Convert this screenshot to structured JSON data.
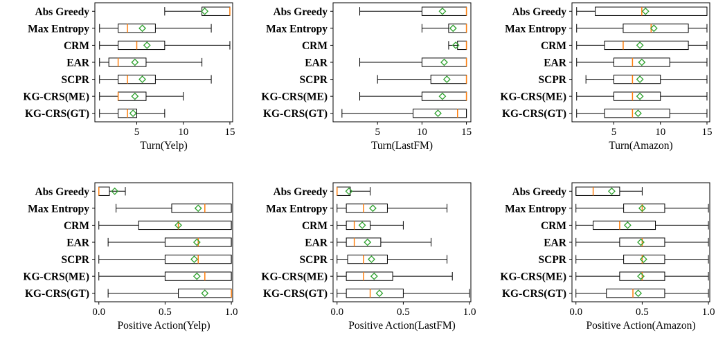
{
  "chart_data": [
    {
      "type": "boxplot",
      "xlabel": "Turn(Yelp)",
      "xlim": [
        0.5,
        15.3
      ],
      "ticks": [
        5,
        10,
        15
      ],
      "tick_labels": [
        "5",
        "10",
        "15"
      ],
      "methods": [
        {
          "name": "Abs Greedy",
          "min": 8,
          "q1": 12,
          "median": 15,
          "q3": 15,
          "max": 15,
          "mean": 12.3
        },
        {
          "name": "Max Entropy",
          "min": 1,
          "q1": 3,
          "median": 4,
          "q3": 7,
          "max": 13,
          "mean": 5.6
        },
        {
          "name": "CRM",
          "min": 1,
          "q1": 3,
          "median": 5,
          "q3": 8,
          "max": 15,
          "mean": 6.1
        },
        {
          "name": "EAR",
          "min": 1,
          "q1": 2,
          "median": 3,
          "q3": 6,
          "max": 12,
          "mean": 4.8
        },
        {
          "name": "SCPR",
          "min": 1,
          "q1": 3,
          "median": 4,
          "q3": 7,
          "max": 13,
          "mean": 5.6
        },
        {
          "name": "KG-CRS(ME)",
          "min": 1,
          "q1": 3,
          "median": 3,
          "q3": 6,
          "max": 10,
          "mean": 4.8
        },
        {
          "name": "KG-CRS(GT)",
          "min": 1,
          "q1": 3,
          "median": 4,
          "q3": 5,
          "max": 8,
          "mean": 4.6
        }
      ]
    },
    {
      "type": "boxplot",
      "xlabel": "Turn(LastFM)",
      "xlim": [
        0,
        15.5
      ],
      "ticks": [
        5,
        10,
        15
      ],
      "tick_labels": [
        "5",
        "10",
        "15"
      ],
      "methods": [
        {
          "name": "Abs Greedy",
          "min": 3,
          "q1": 10,
          "median": 15,
          "q3": 15,
          "max": 15,
          "mean": 12.3
        },
        {
          "name": "Max Entropy",
          "min": 10,
          "q1": 13,
          "median": 15,
          "q3": 15,
          "max": 15,
          "mean": 13.5
        },
        {
          "name": "CRM",
          "min": 13,
          "q1": 14,
          "median": 15,
          "q3": 15,
          "max": 15,
          "mean": 13.8
        },
        {
          "name": "EAR",
          "min": 3,
          "q1": 10,
          "median": 15,
          "q3": 15,
          "max": 15,
          "mean": 12.5
        },
        {
          "name": "SCPR",
          "min": 5,
          "q1": 11,
          "median": 15,
          "q3": 15,
          "max": 15,
          "mean": 12.8
        },
        {
          "name": "KG-CRS(ME)",
          "min": 3,
          "q1": 10,
          "median": 15,
          "q3": 15,
          "max": 15,
          "mean": 12.3
        },
        {
          "name": "KG-CRS(GT)",
          "min": 1,
          "q1": 9,
          "median": 14,
          "q3": 15,
          "max": 15,
          "mean": 11.8
        }
      ]
    },
    {
      "type": "boxplot",
      "xlabel": "Turn(Amazon)",
      "xlim": [
        0.5,
        15.3
      ],
      "ticks": [
        5,
        10,
        15
      ],
      "tick_labels": [
        "5",
        "10",
        "15"
      ],
      "methods": [
        {
          "name": "Abs Greedy",
          "min": 1,
          "q1": 3,
          "median": 8,
          "q3": 15,
          "max": 15,
          "mean": 8.4
        },
        {
          "name": "Max Entropy",
          "min": 1,
          "q1": 6,
          "median": 9,
          "q3": 13,
          "max": 15,
          "mean": 9.3
        },
        {
          "name": "CRM",
          "min": 1,
          "q1": 4,
          "median": 6,
          "q3": 13,
          "max": 15,
          "mean": 7.8
        },
        {
          "name": "EAR",
          "min": 1,
          "q1": 5,
          "median": 7,
          "q3": 11,
          "max": 15,
          "mean": 8.0
        },
        {
          "name": "SCPR",
          "min": 2,
          "q1": 5,
          "median": 7,
          "q3": 10,
          "max": 15,
          "mean": 7.8
        },
        {
          "name": "KG-CRS(ME)",
          "min": 1,
          "q1": 5,
          "median": 7,
          "q3": 10,
          "max": 15,
          "mean": 7.8
        },
        {
          "name": "KG-CRS(GT)",
          "min": 1,
          "q1": 4,
          "median": 7,
          "q3": 11,
          "max": 15,
          "mean": 7.6
        }
      ]
    },
    {
      "type": "boxplot",
      "xlabel": "Positive Action(Yelp)",
      "xlim": [
        -0.03,
        1.01
      ],
      "ticks": [
        0,
        0.5,
        1
      ],
      "tick_labels": [
        "0.0",
        "0.5",
        "1.0"
      ],
      "methods": [
        {
          "name": "Abs Greedy",
          "min": 0,
          "q1": 0,
          "median": 0,
          "q3": 0.08,
          "max": 0.2,
          "mean": 0.12
        },
        {
          "name": "Max Entropy",
          "min": 0.13,
          "q1": 0.55,
          "median": 0.8,
          "q3": 1.0,
          "max": 1.0,
          "mean": 0.75
        },
        {
          "name": "CRM",
          "min": 0,
          "q1": 0.3,
          "median": 0.6,
          "q3": 1.0,
          "max": 1.0,
          "mean": 0.6
        },
        {
          "name": "EAR",
          "min": 0.07,
          "q1": 0.5,
          "median": 0.75,
          "q3": 1.0,
          "max": 1.0,
          "mean": 0.74
        },
        {
          "name": "SCPR",
          "min": 0,
          "q1": 0.5,
          "median": 0.75,
          "q3": 1.0,
          "max": 1.0,
          "mean": 0.72
        },
        {
          "name": "KG-CRS(ME)",
          "min": 0,
          "q1": 0.5,
          "median": 0.8,
          "q3": 1.0,
          "max": 1.0,
          "mean": 0.74
        },
        {
          "name": "KG-CRS(GT)",
          "min": 0.07,
          "q1": 0.6,
          "median": 1.0,
          "q3": 1.0,
          "max": 1.0,
          "mean": 0.8
        }
      ]
    },
    {
      "type": "boxplot",
      "xlabel": "Positive Action(LastFM)",
      "xlim": [
        -0.03,
        1.01
      ],
      "ticks": [
        0,
        0.5,
        1
      ],
      "tick_labels": [
        "0.0",
        "0.5",
        "1.0"
      ],
      "methods": [
        {
          "name": "Abs Greedy",
          "min": 0,
          "q1": 0,
          "median": 0,
          "q3": 0.1,
          "max": 0.25,
          "mean": 0.09
        },
        {
          "name": "Max Entropy",
          "min": 0,
          "q1": 0.07,
          "median": 0.2,
          "q3": 0.38,
          "max": 0.83,
          "mean": 0.27
        },
        {
          "name": "CRM",
          "min": 0,
          "q1": 0.07,
          "median": 0.13,
          "q3": 0.25,
          "max": 0.5,
          "mean": 0.19
        },
        {
          "name": "EAR",
          "min": 0,
          "q1": 0.07,
          "median": 0.13,
          "q3": 0.33,
          "max": 0.71,
          "mean": 0.23
        },
        {
          "name": "SCPR",
          "min": 0,
          "q1": 0.08,
          "median": 0.2,
          "q3": 0.38,
          "max": 0.83,
          "mean": 0.26
        },
        {
          "name": "KG-CRS(ME)",
          "min": 0,
          "q1": 0.07,
          "median": 0.2,
          "q3": 0.42,
          "max": 0.87,
          "mean": 0.28
        },
        {
          "name": "KG-CRS(GT)",
          "min": 0,
          "q1": 0.07,
          "median": 0.25,
          "q3": 0.5,
          "max": 1.0,
          "mean": 0.32
        }
      ]
    },
    {
      "type": "boxplot",
      "xlabel": "Positive Action(Amazon)",
      "xlim": [
        -0.03,
        1.01
      ],
      "ticks": [
        0,
        0.5,
        1
      ],
      "tick_labels": [
        "0.0",
        "0.5",
        "1.0"
      ],
      "methods": [
        {
          "name": "Abs Greedy",
          "min": 0,
          "q1": 0,
          "median": 0.13,
          "q3": 0.33,
          "max": 0.5,
          "mean": 0.27
        },
        {
          "name": "Max Entropy",
          "min": 0,
          "q1": 0.36,
          "median": 0.5,
          "q3": 0.67,
          "max": 1.0,
          "mean": 0.5
        },
        {
          "name": "CRM",
          "min": 0,
          "q1": 0.13,
          "median": 0.33,
          "q3": 0.6,
          "max": 1.0,
          "mean": 0.39
        },
        {
          "name": "EAR",
          "min": 0,
          "q1": 0.33,
          "median": 0.5,
          "q3": 0.67,
          "max": 1.0,
          "mean": 0.49
        },
        {
          "name": "SCPR",
          "min": 0,
          "q1": 0.36,
          "median": 0.5,
          "q3": 0.67,
          "max": 1.0,
          "mean": 0.51
        },
        {
          "name": "KG-CRS(ME)",
          "min": 0,
          "q1": 0.33,
          "median": 0.5,
          "q3": 0.67,
          "max": 1.0,
          "mean": 0.49
        },
        {
          "name": "KG-CRS(GT)",
          "min": 0,
          "q1": 0.23,
          "median": 0.43,
          "q3": 0.67,
          "max": 1.0,
          "mean": 0.47
        }
      ]
    }
  ],
  "colors": {
    "median": "#ff7f0e",
    "mean": "#2ca02c",
    "box": "#000000"
  }
}
